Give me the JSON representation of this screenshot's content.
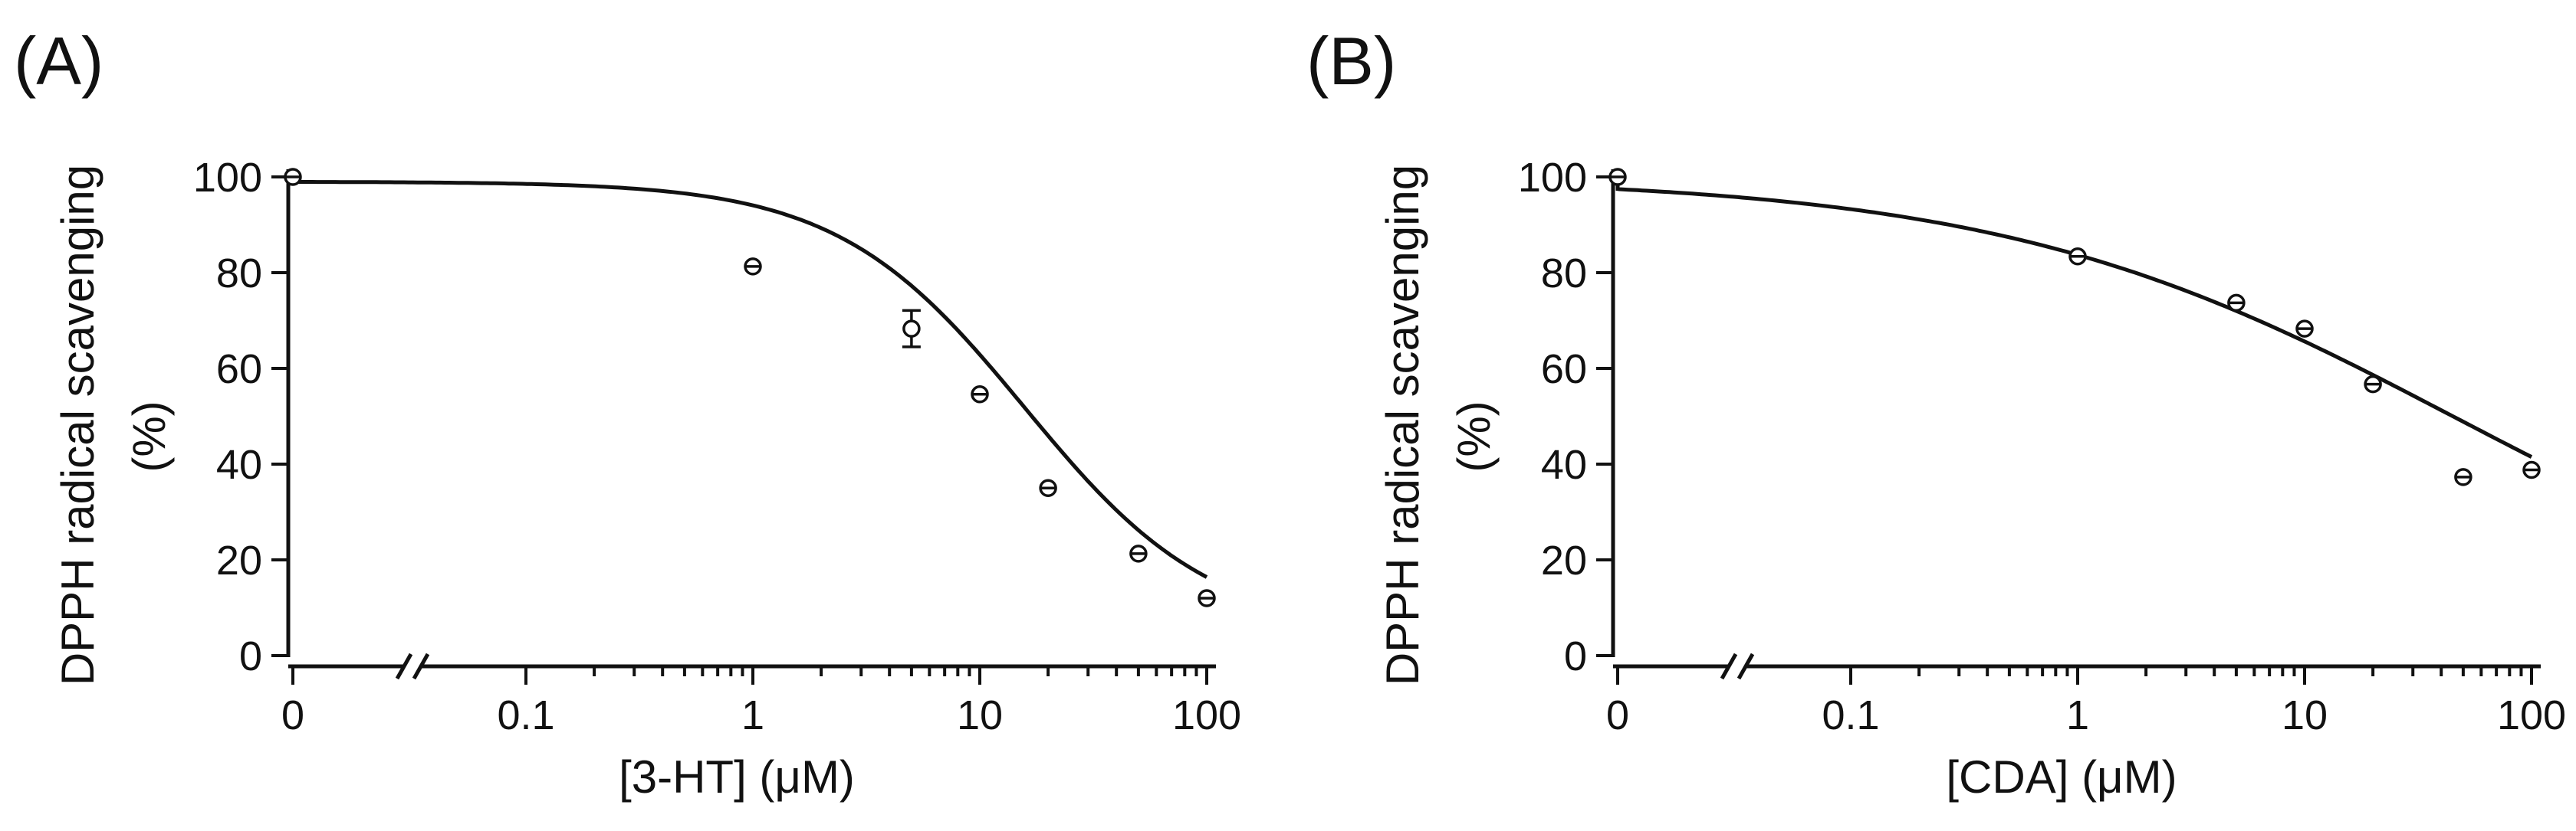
{
  "chart_data": [
    {
      "type": "scatter",
      "panel_label": "(A)",
      "xlabel": "[3-HT] (μM)",
      "ylabel_line1": "DPPH radical scavenging",
      "ylabel_line2": "(%)",
      "x_scale": "log with axis break; 0 plotted at left",
      "ylim": [
        0,
        100
      ],
      "yticks": [
        "0",
        "20",
        "40",
        "60",
        "80",
        "100"
      ],
      "xticks": [
        "0",
        "0.1",
        "1",
        "10",
        "100"
      ],
      "grid": false,
      "points": [
        {
          "x": 0,
          "y": 100,
          "err": 0.6
        },
        {
          "x": 1,
          "y": 81.3,
          "err": 1.0
        },
        {
          "x": 5,
          "y": 68.3,
          "err": 3.8
        },
        {
          "x": 10,
          "y": 54.6,
          "err": 1.0
        },
        {
          "x": 20,
          "y": 35.0,
          "err": 1.0
        },
        {
          "x": 50,
          "y": 21.3,
          "err": 1.0
        },
        {
          "x": 100,
          "y": 12.0,
          "err": 1.0
        }
      ],
      "fit": {
        "model": "four-parameter logistic",
        "top": 99,
        "bottom": 4.5,
        "ec50_uM": 15.8,
        "hill": 1.05,
        "shown": true
      }
    },
    {
      "type": "scatter",
      "panel_label": "(B)",
      "xlabel": "[CDA] (μM)",
      "ylabel_line1": "DPPH radical scavenging",
      "ylabel_line2": "(%)",
      "x_scale": "log with axis break; 0 plotted at left",
      "ylim": [
        0,
        100
      ],
      "yticks": [
        "0",
        "20",
        "40",
        "60",
        "80",
        "100"
      ],
      "xticks": [
        "0",
        "0.1",
        "1",
        "10",
        "100"
      ],
      "grid": false,
      "points": [
        {
          "x": 0,
          "y": 100,
          "err": 0.6
        },
        {
          "x": 1,
          "y": 83.4,
          "err": 1.0
        },
        {
          "x": 5,
          "y": 73.7,
          "err": 1.0
        },
        {
          "x": 10,
          "y": 68.3,
          "err": 1.2
        },
        {
          "x": 20,
          "y": 56.7,
          "err": 1.0
        },
        {
          "x": 50,
          "y": 37.3,
          "err": 1.2
        },
        {
          "x": 100,
          "y": 38.8,
          "err": 1.0
        }
      ],
      "fit": {
        "model": "four-parameter logistic",
        "top": 100,
        "bottom": 0,
        "ec50_uM": 45,
        "hill": 0.43,
        "shown": true
      }
    }
  ]
}
